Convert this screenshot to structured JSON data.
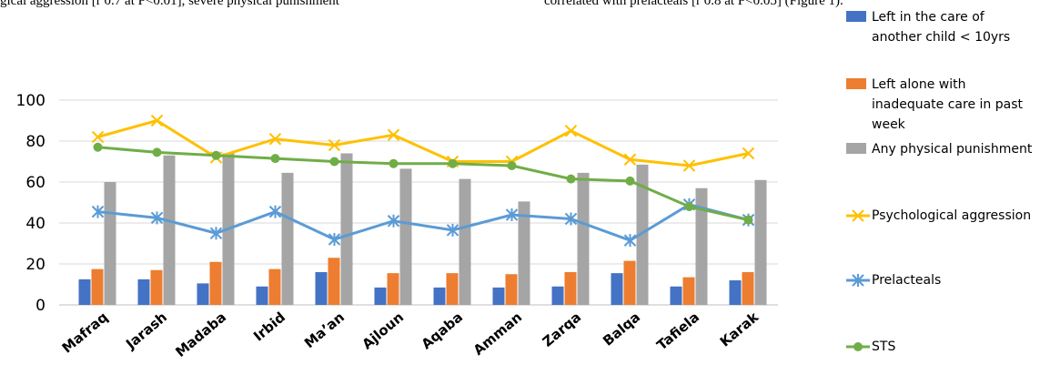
{
  "document": {
    "left_text": "gical aggression [r 0.7 at P<0.01], severe physical punishment",
    "right_text": "correlated with prelacteals [r 0.8 at P<0.05] (Figure 1)."
  },
  "chart_data": {
    "type": "bar-line",
    "categories": [
      "Mafraq",
      "Jarash",
      "Madaba",
      "Irbid",
      "Ma’an",
      "Ajloun",
      "Aqaba",
      "Amman",
      "Zarqa",
      "Balqa",
      "Tafiela",
      "Karak"
    ],
    "ylim": [
      0,
      100
    ],
    "yticks": [
      0,
      20,
      40,
      60,
      80,
      100
    ],
    "grid": true,
    "legend": "right",
    "series": [
      {
        "name": "Left in the care of another child < 10yrs",
        "type": "bar",
        "color": "#4472c4",
        "values": [
          12.5,
          12.5,
          10.5,
          9,
          16,
          8.5,
          8.5,
          8.5,
          9,
          15.5,
          9,
          12
        ]
      },
      {
        "name": "Left alone with inadequate care in past week",
        "type": "bar",
        "color": "#ed7d31",
        "values": [
          17.5,
          17,
          21,
          17.5,
          23,
          15.5,
          15.5,
          15,
          16,
          21.5,
          13.5,
          16
        ]
      },
      {
        "name": "Any physical punishment",
        "type": "bar",
        "color": "#a5a5a5",
        "values": [
          60,
          73,
          74,
          64.5,
          74,
          66.5,
          61.5,
          50.5,
          64.5,
          68.5,
          57,
          61
        ]
      },
      {
        "name": "Psychological aggression",
        "type": "line",
        "marker": "x",
        "color": "#ffc000",
        "values": [
          82,
          90,
          72,
          81,
          78,
          83,
          70,
          70,
          85,
          71,
          68,
          74
        ]
      },
      {
        "name": "Prelacteals",
        "type": "line",
        "marker": "asterisk",
        "color": "#5b9bd5",
        "values": [
          45.5,
          42.5,
          35,
          45.5,
          32,
          41,
          36.5,
          44,
          42,
          31.5,
          49,
          41.5
        ]
      },
      {
        "name": "STS",
        "type": "line",
        "marker": "circle",
        "color": "#70ad47",
        "values": [
          77,
          74.5,
          73,
          71.5,
          70,
          69,
          69,
          68,
          61.5,
          60.5,
          48,
          41.5
        ]
      }
    ]
  }
}
